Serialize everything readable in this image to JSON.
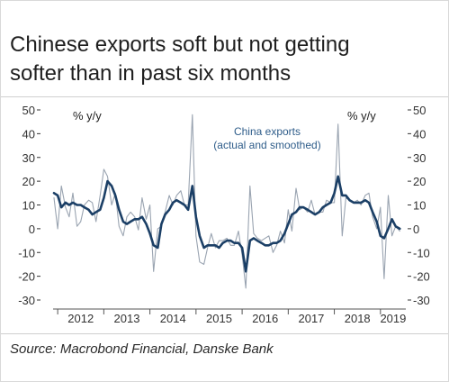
{
  "title_lines": [
    "Chinese exports soft but not getting",
    "softer than in past six months"
  ],
  "source": "Source: Macrobond Financial, Danske Bank",
  "colors": {
    "actual": "#9aa4b1",
    "smoothed": "#1b3f66",
    "text": "#333333",
    "annotation": "#2f5d8a"
  },
  "chart_data": {
    "type": "line",
    "title": "",
    "left_unit_label": "% y/y",
    "right_unit_label": "% y/y",
    "annotation_lines": [
      "China exports",
      "(actual and smoothed)"
    ],
    "ylim": [
      -30,
      50
    ],
    "yticks": [
      -30,
      -20,
      -10,
      0,
      10,
      20,
      30,
      40,
      50
    ],
    "ytick_labels": [
      "-30",
      "-20",
      "-10",
      "0",
      "10",
      "20",
      "30",
      "40",
      "50"
    ],
    "xlim": [
      2011.9,
      2019.55
    ],
    "year_labels": [
      "2012",
      "2013",
      "2014",
      "2015",
      "2016",
      "2017",
      "2018",
      "2019"
    ],
    "grid": false,
    "legend": "none",
    "series": [
      {
        "name": "actual",
        "x": [
          2011.92,
          2012.0,
          2012.08,
          2012.17,
          2012.25,
          2012.33,
          2012.42,
          2012.5,
          2012.58,
          2012.67,
          2012.75,
          2012.83,
          2012.92,
          2013.0,
          2013.08,
          2013.17,
          2013.25,
          2013.33,
          2013.42,
          2013.5,
          2013.58,
          2013.67,
          2013.75,
          2013.83,
          2013.92,
          2014.0,
          2014.08,
          2014.17,
          2014.25,
          2014.33,
          2014.42,
          2014.5,
          2014.58,
          2014.67,
          2014.75,
          2014.83,
          2014.92,
          2015.0,
          2015.08,
          2015.17,
          2015.25,
          2015.33,
          2015.42,
          2015.5,
          2015.58,
          2015.67,
          2015.75,
          2015.83,
          2015.92,
          2016.0,
          2016.08,
          2016.17,
          2016.25,
          2016.33,
          2016.42,
          2016.5,
          2016.58,
          2016.67,
          2016.75,
          2016.83,
          2016.92,
          2017.0,
          2017.08,
          2017.17,
          2017.25,
          2017.33,
          2017.42,
          2017.5,
          2017.58,
          2017.67,
          2017.75,
          2017.83,
          2017.92,
          2018.0,
          2018.08,
          2018.17,
          2018.25,
          2018.33,
          2018.42,
          2018.5,
          2018.58,
          2018.67,
          2018.75,
          2018.83,
          2018.92,
          2019.0,
          2019.08,
          2019.17,
          2019.25,
          2019.33,
          2019.42
        ],
        "y": [
          13,
          0,
          18,
          9,
          5,
          15,
          1,
          3,
          10,
          12,
          11,
          3,
          14,
          25,
          22,
          10,
          15,
          1,
          -3,
          5,
          7,
          5,
          -0.5,
          13,
          4,
          10,
          -18,
          0,
          1,
          7,
          14,
          10,
          14,
          16,
          10,
          10,
          48,
          -3,
          -14,
          -15,
          -8,
          -2,
          -8,
          -5,
          -5,
          -4,
          -7,
          -7,
          -1,
          -11,
          -25,
          18,
          -2,
          -4,
          -5,
          -4,
          -3,
          -10,
          -7,
          -1,
          -6,
          8,
          -1,
          17,
          8,
          9,
          7,
          12,
          6,
          7,
          7,
          12,
          11,
          11,
          44,
          -3,
          13,
          12,
          11,
          12,
          10,
          14,
          15,
          5,
          0,
          9,
          -21,
          14,
          -3,
          1,
          -1
        ],
        "color": "#9aa4b1"
      },
      {
        "name": "smoothed",
        "x": [
          2011.92,
          2012.0,
          2012.08,
          2012.17,
          2012.25,
          2012.33,
          2012.42,
          2012.5,
          2012.58,
          2012.67,
          2012.75,
          2012.83,
          2012.92,
          2013.0,
          2013.08,
          2013.17,
          2013.25,
          2013.33,
          2013.42,
          2013.5,
          2013.58,
          2013.67,
          2013.75,
          2013.83,
          2013.92,
          2014.0,
          2014.08,
          2014.17,
          2014.25,
          2014.33,
          2014.42,
          2014.5,
          2014.58,
          2014.67,
          2014.75,
          2014.83,
          2014.92,
          2015.0,
          2015.08,
          2015.17,
          2015.25,
          2015.33,
          2015.42,
          2015.5,
          2015.58,
          2015.67,
          2015.75,
          2015.83,
          2015.92,
          2016.0,
          2016.08,
          2016.17,
          2016.25,
          2016.33,
          2016.42,
          2016.5,
          2016.58,
          2016.67,
          2016.75,
          2016.83,
          2016.92,
          2017.0,
          2017.08,
          2017.17,
          2017.25,
          2017.33,
          2017.42,
          2017.5,
          2017.58,
          2017.67,
          2017.75,
          2017.83,
          2017.92,
          2018.0,
          2018.08,
          2018.17,
          2018.25,
          2018.33,
          2018.42,
          2018.5,
          2018.58,
          2018.67,
          2018.75,
          2018.83,
          2018.92,
          2019.0,
          2019.08,
          2019.17,
          2019.25,
          2019.33,
          2019.42
        ],
        "y": [
          15,
          14,
          9,
          11,
          10,
          11,
          10,
          10,
          9,
          8,
          6,
          7,
          8,
          13,
          20,
          18,
          14,
          8,
          3,
          2,
          3,
          4,
          4,
          5,
          2,
          -2,
          -7,
          -8,
          2,
          6,
          8,
          11,
          12,
          11,
          10,
          8,
          18,
          5,
          -3,
          -8,
          -7,
          -7,
          -7,
          -8,
          -6,
          -5,
          -5,
          -6,
          -6,
          -8,
          -18,
          -5,
          -4,
          -5,
          -6,
          -7,
          -7,
          -6,
          -6,
          -5,
          -2,
          2,
          6,
          7,
          9,
          9,
          8,
          7,
          6,
          7,
          9,
          10,
          11,
          15,
          22,
          14,
          14,
          12,
          11,
          11,
          11,
          12,
          11,
          7,
          3,
          -3,
          -4,
          0,
          4,
          1,
          0
        ],
        "color": "#1b3f66"
      }
    ]
  }
}
